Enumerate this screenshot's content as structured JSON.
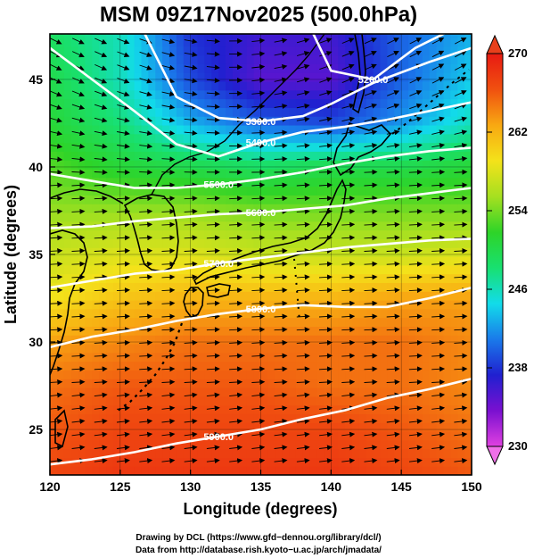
{
  "chart_data": {
    "type": "heatmap",
    "title": "MSM 09Z17Nov2025 (500.0hPa)",
    "xlabel": "Longitude (degrees)",
    "ylabel": "Latitude  (degrees)",
    "xlim": [
      120,
      150
    ],
    "ylim": [
      22.4,
      47.6
    ],
    "x_ticks": [
      120,
      125,
      130,
      135,
      140,
      145,
      150
    ],
    "y_ticks": [
      25,
      30,
      35,
      40,
      45
    ],
    "colorbar": {
      "min": 230,
      "max": 270,
      "ticks": [
        230,
        238,
        246,
        254,
        262,
        270
      ],
      "colors": [
        "#e040e0",
        "#7a10d0",
        "#2020d0",
        "#1a7aea",
        "#12dcea",
        "#18e070",
        "#2ed428",
        "#a6e020",
        "#f4e21a",
        "#f8a812",
        "#f05010",
        "#e81a12"
      ]
    },
    "temperature_field": {
      "longitudes": [
        120,
        125,
        130,
        135,
        140,
        145,
        150
      ],
      "latitudes": [
        47.5,
        45,
        42.5,
        40,
        37.5,
        35,
        32.5,
        30,
        27.5,
        25,
        22.5
      ],
      "values": [
        [
          249,
          246,
          238,
          236,
          236,
          240,
          243
        ],
        [
          250,
          246,
          239,
          235,
          235,
          240,
          244
        ],
        [
          251,
          248,
          243,
          240,
          239,
          242,
          246
        ],
        [
          253,
          251,
          250,
          249,
          250,
          250,
          251
        ],
        [
          255,
          255,
          255,
          254,
          254,
          254,
          254
        ],
        [
          257,
          258,
          258,
          257,
          257,
          257,
          258
        ],
        [
          259,
          261,
          262,
          262,
          262,
          263,
          263
        ],
        [
          263,
          264,
          265,
          265,
          265,
          265,
          264
        ],
        [
          265,
          266,
          266,
          266,
          265,
          265,
          264
        ],
        [
          266,
          267,
          267,
          267,
          267,
          266,
          265
        ],
        [
          267,
          268,
          268,
          268,
          268,
          267,
          266
        ]
      ]
    },
    "height_contours": [
      {
        "level": "5200.0",
        "lon": [
          138.5,
          140,
          143,
          146,
          149
        ],
        "lat": [
          48.0,
          45.5,
          45.0,
          46.8,
          48.0
        ]
      },
      {
        "level": "5300.0",
        "lon": [
          126.5,
          129,
          132,
          135,
          138,
          140,
          143,
          147,
          150
        ],
        "lat": [
          48.0,
          44.0,
          42.8,
          42.6,
          42.9,
          43.6,
          44.8,
          46.0,
          46.8
        ]
      },
      {
        "level": "5400.0",
        "lon": [
          120,
          123,
          126,
          129,
          132,
          135,
          138,
          141,
          144,
          147,
          150
        ],
        "lat": [
          46.8,
          45.0,
          43.2,
          41.3,
          40.6,
          41.4,
          42.0,
          42.3,
          42.7,
          43.2,
          43.7
        ]
      },
      {
        "level": "5500.0",
        "lon": [
          120,
          123,
          126,
          129,
          132,
          135,
          138,
          141,
          144,
          147,
          150
        ],
        "lat": [
          39.6,
          39.2,
          38.8,
          38.8,
          39.0,
          39.3,
          39.7,
          40.2,
          40.6,
          40.9,
          41.1
        ]
      },
      {
        "level": "5600.0",
        "lon": [
          120,
          123,
          126,
          129,
          132,
          135,
          138,
          141,
          144,
          147,
          150
        ],
        "lat": [
          36.5,
          36.6,
          36.9,
          37.1,
          37.3,
          37.4,
          37.6,
          37.8,
          38.2,
          38.5,
          38.8
        ]
      },
      {
        "level": "5700.0",
        "lon": [
          120,
          123,
          126,
          129,
          132,
          135,
          138,
          141,
          144,
          147,
          150
        ],
        "lat": [
          33.1,
          33.5,
          33.9,
          34.1,
          34.5,
          34.8,
          35.1,
          35.4,
          35.6,
          35.8,
          35.9
        ]
      },
      {
        "level": "5800.0",
        "lon": [
          120,
          123,
          126,
          129,
          132,
          135,
          138,
          141,
          144,
          147,
          150
        ],
        "lat": [
          29.7,
          30.3,
          30.7,
          31.2,
          31.6,
          31.9,
          32.1,
          32.0,
          32.0,
          32.5,
          33.1
        ]
      },
      {
        "level": "5900.0",
        "lon": [
          120,
          123,
          126,
          129,
          132,
          135,
          138,
          141,
          144,
          147,
          150
        ],
        "lat": [
          23.0,
          23.3,
          23.7,
          24.2,
          24.6,
          25.0,
          25.6,
          26.1,
          26.8,
          27.3,
          27.9
        ]
      }
    ],
    "grid": true,
    "credits": [
      "Drawing by DCL (https://www.gfd−dennou.org/library/dcl/)",
      "Data from http://database.rish.kyoto−u.ac.jp/arch/jmadata/"
    ]
  }
}
